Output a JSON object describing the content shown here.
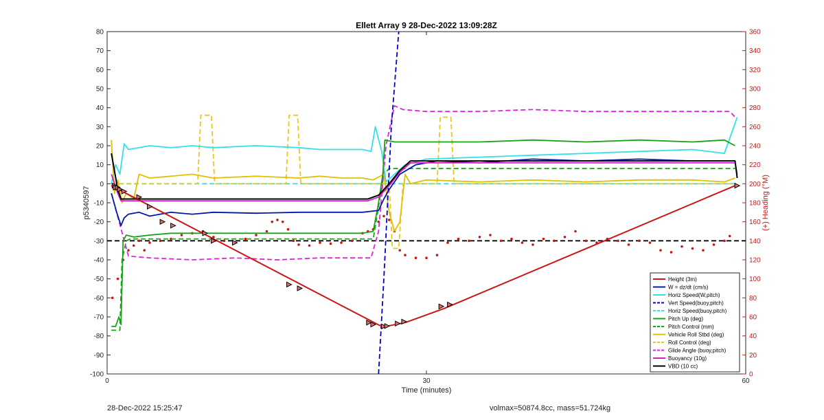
{
  "chart_data": {
    "type": "line",
    "title": "Ellett Array 9 28-Dec-2022 13:09:28Z",
    "xlabel": "Time (minutes)",
    "ylabel": "p5340597",
    "y2label": "(+) Heading (°M)",
    "xlim": [
      0,
      60
    ],
    "ylim": [
      -100,
      80
    ],
    "y2lim": [
      0,
      360
    ],
    "xticks": [
      0,
      30,
      60
    ],
    "yticks": [
      80,
      70,
      60,
      50,
      40,
      30,
      20,
      10,
      0,
      -10,
      -20,
      -30,
      -40,
      -50,
      -60,
      -70,
      -80,
      -90,
      -100
    ],
    "y2ticks": [
      360,
      340,
      320,
      300,
      280,
      260,
      240,
      220,
      200,
      180,
      160,
      140,
      120,
      100,
      80,
      60,
      40,
      20,
      0
    ],
    "grid": false,
    "legend_position": "lower-right",
    "colors": {
      "height": "#cc1414",
      "w": "#001aa8",
      "horiz_w": "#33e0e8",
      "vert_buoy": "#0000cc",
      "horiz_buoy": "#33e0e8",
      "pitch_up": "#16a316",
      "pitch_control": "#16a316",
      "roll": "#e0c000",
      "roll_control": "#e8c820",
      "glide": "#e020e0",
      "buoyancy": "#d020d0",
      "vbd": "#000000",
      "heading": "#cc1414",
      "right_axis": "#cc1414"
    },
    "series": [
      {
        "key": "height",
        "name": "Height (3m)",
        "style": "solid",
        "axis": "left",
        "x": [
          0.4,
          25.6,
          26.2,
          28.0,
          31.7,
          59.0
        ],
        "y": [
          -1,
          -74.5,
          -75,
          -73,
          -65.5,
          -1
        ]
      },
      {
        "key": "w",
        "name": "W = dz/dt (cm/s)",
        "style": "solid",
        "axis": "left",
        "x": [
          0.4,
          0.9,
          1.3,
          1.6,
          2.0,
          3.0,
          4.0,
          6.0,
          8.0,
          10,
          14,
          18,
          22,
          24,
          25.5,
          26.0,
          26.5,
          27.5,
          29,
          31,
          35,
          40,
          45,
          50,
          55,
          59
        ],
        "y": [
          -5,
          -15,
          -22,
          -18,
          -16,
          -15,
          -17,
          -15,
          -16,
          -15,
          -15.5,
          -15,
          -15,
          -15,
          -14,
          -8,
          -3,
          5,
          10,
          12,
          11,
          13,
          12,
          13,
          12,
          12
        ]
      },
      {
        "key": "horiz_w",
        "name": "Horiz Speed(W,pitch)",
        "style": "solid",
        "axis": "left",
        "x": [
          0.4,
          0.8,
          1.2,
          1.6,
          2.0,
          4,
          6,
          8,
          10,
          14,
          18,
          20,
          22,
          24,
          24.8,
          25.2,
          25.8,
          26.2,
          27,
          28,
          30,
          35,
          40,
          45,
          50,
          55,
          58,
          59.2
        ],
        "y": [
          0,
          10,
          5,
          21,
          18,
          20,
          19,
          20,
          19,
          20,
          19,
          18,
          18,
          18,
          17,
          30,
          17,
          1,
          5,
          10,
          13,
          14,
          15,
          16,
          17,
          18,
          16,
          35
        ]
      },
      {
        "key": "vert_buoy",
        "name": "Vert Speed(buoy,pitch)",
        "style": "dashed",
        "axis": "left",
        "x": [
          25.5,
          26.0,
          26.7,
          27.4
        ],
        "y": [
          -100,
          -50,
          30,
          80
        ]
      },
      {
        "key": "horiz_buoy",
        "name": "Horiz Speed(buoy,pitch)",
        "style": "dashed",
        "axis": "left",
        "x": [
          0.4,
          59
        ],
        "y": [
          0,
          0
        ]
      },
      {
        "key": "pitch_up",
        "name": "Pitch Up (deg)",
        "style": "solid",
        "axis": "left",
        "x": [
          0.4,
          0.8,
          1.1,
          1.3,
          1.5,
          1.8,
          2.5,
          4,
          6,
          10,
          14,
          18,
          22,
          24,
          25,
          25.5,
          25.9,
          26.1,
          27,
          30,
          35,
          40,
          45,
          50,
          55,
          58,
          59
        ],
        "y": [
          -75,
          -75,
          -70,
          -74,
          -30,
          -27,
          -28,
          -27,
          -26,
          -26,
          -26,
          -26,
          -26,
          -26,
          -25,
          -10,
          5,
          23,
          22,
          22,
          22,
          23,
          22,
          23,
          22,
          23,
          20
        ]
      },
      {
        "key": "pitch_control",
        "name": "Pitch Control (mm)",
        "style": "dashed",
        "axis": "left",
        "x": [
          0.4,
          1.2,
          1.4,
          1.8,
          2.2,
          4,
          24,
          25,
          26,
          26.5,
          27.2,
          28,
          29.5,
          59
        ],
        "y": [
          -77,
          -77,
          -40,
          -30,
          -29,
          -29,
          -29,
          -29,
          5,
          8,
          8,
          8,
          8,
          8
        ]
      },
      {
        "key": "roll",
        "name": "Vehicle Roll Stbd (deg)",
        "style": "solid",
        "axis": "left",
        "x": [
          0.4,
          0.7,
          1.0,
          1.4,
          1.8,
          2.5,
          3.0,
          4,
          6,
          8,
          10,
          14,
          18,
          20,
          22,
          24,
          25,
          26,
          26.5,
          27,
          27.5,
          28,
          28.5,
          30,
          35,
          40,
          45,
          50,
          55,
          58,
          59
        ],
        "y": [
          23,
          -5,
          2,
          -10,
          -5,
          -8,
          5,
          3,
          4,
          5,
          3,
          4,
          3,
          4,
          3,
          3,
          2,
          5,
          -15,
          -25,
          -20,
          5,
          0,
          2,
          1,
          2,
          1,
          2,
          2,
          1,
          3
        ]
      },
      {
        "key": "roll_control",
        "name": "Roll Control (deg)",
        "style": "dashed",
        "axis": "left",
        "x": [
          0.4,
          2.8,
          3.0,
          3.8,
          4.2,
          8.5,
          8.8,
          9.8,
          10.1,
          16.8,
          17.1,
          17.9,
          18.2,
          24.5,
          26.5,
          26.8,
          27.4,
          27.8,
          31.0,
          31.3,
          32.3,
          32.6,
          59
        ],
        "y": [
          0,
          0,
          0,
          0,
          0,
          0,
          36,
          36,
          0,
          0,
          36,
          36,
          0,
          0,
          0,
          -34,
          -34,
          0,
          0,
          35,
          35,
          0,
          0
        ]
      },
      {
        "key": "glide",
        "name": "Glide Angle (buoy,pitch)",
        "style": "dashed",
        "axis": "left",
        "x": [
          0.4,
          2.0,
          4,
          8,
          12,
          16,
          20,
          24,
          24.8,
          25.5,
          26.2,
          27.0,
          27.8,
          30,
          35,
          40,
          45,
          50,
          55,
          58.5,
          59
        ],
        "y": [
          -5,
          -38,
          -39,
          -40,
          -39,
          -40,
          -39,
          -39,
          -39,
          -25,
          20,
          41,
          39,
          38,
          38,
          39,
          38,
          38,
          38,
          38,
          35
        ]
      },
      {
        "key": "buoyancy",
        "name": "Buoyancy (10g)",
        "style": "solid",
        "axis": "left",
        "x": [
          0.4,
          1.0,
          1.3,
          24.5,
          25.5,
          26.5,
          27.5,
          28.5,
          59.0,
          59.2
        ],
        "y": [
          5,
          -5,
          -9,
          -9,
          -7,
          -1,
          6,
          11,
          11,
          5
        ]
      },
      {
        "key": "vbd",
        "name": "VBD (10 cc)",
        "style": "solid",
        "axis": "left",
        "x": [
          0.4,
          1.0,
          1.3,
          24.5,
          25.5,
          26.5,
          27.5,
          28.5,
          59.0,
          59.2
        ],
        "y": [
          16,
          -3,
          -8,
          -8,
          -6,
          0,
          7,
          12,
          12,
          3
        ]
      },
      {
        "key": "heading_ref",
        "name": "",
        "style": "dashed",
        "axis": "right",
        "x": [
          0,
          60
        ],
        "y": [
          140,
          140
        ]
      },
      {
        "key": "heading",
        "name": "",
        "style": "dots",
        "axis": "right",
        "x": [
          0.5,
          1.0,
          1.5,
          2.0,
          2.5,
          3.0,
          3.5,
          4.0,
          5.0,
          6.0,
          7.0,
          8.0,
          9.0,
          10,
          11,
          12,
          13,
          14,
          15,
          15.5,
          16,
          16.5,
          17,
          17.5,
          18,
          19,
          20,
          21,
          22,
          23,
          24,
          24.5,
          25,
          25.5,
          26,
          26.5,
          27,
          27.5,
          28,
          29,
          30,
          31,
          32,
          33,
          34,
          35,
          36,
          37,
          38,
          39,
          40,
          41,
          42,
          43,
          44,
          45,
          46,
          47,
          48,
          49,
          50,
          51,
          52,
          53,
          54,
          55,
          56,
          57,
          58,
          58.5
        ],
        "y": [
          80,
          100,
          120,
          130,
          135,
          140,
          130,
          138,
          140,
          142,
          146,
          148,
          150,
          144,
          140,
          138,
          142,
          146,
          150,
          160,
          162,
          160,
          152,
          140,
          136,
          135,
          138,
          137,
          138,
          140,
          148,
          150,
          152,
          160,
          166,
          162,
          150,
          130,
          125,
          122,
          122,
          125,
          138,
          142,
          140,
          144,
          146,
          140,
          142,
          138,
          136,
          142,
          140,
          144,
          150,
          140,
          138,
          142,
          140,
          136,
          140,
          138,
          130,
          128,
          134,
          132,
          130,
          136,
          140,
          145
        ]
      }
    ],
    "markers": {
      "key": "height",
      "x": [
        0.7,
        0.8,
        1.0,
        1.2,
        1.6,
        3.0,
        4.0,
        5.2,
        6.2,
        9.2,
        10.0,
        12.0,
        17.1,
        18.1,
        24.6,
        25.0,
        26.0,
        26.3,
        27.3,
        27.9,
        31.4,
        32.2,
        59.2
      ],
      "y": [
        -1,
        -2,
        -2,
        -3,
        -4,
        -7,
        -12,
        -20,
        -22,
        -26,
        -30,
        -31,
        -53,
        -55,
        -73,
        -74,
        -75,
        -74.8,
        -73.5,
        -72.5,
        -64.5,
        -63.5,
        -1
      ]
    }
  },
  "footer": {
    "timestamp": "28-Dec-2022 15:25:47",
    "summary": "volmax=50874.8cc, mass=51.724kg"
  }
}
